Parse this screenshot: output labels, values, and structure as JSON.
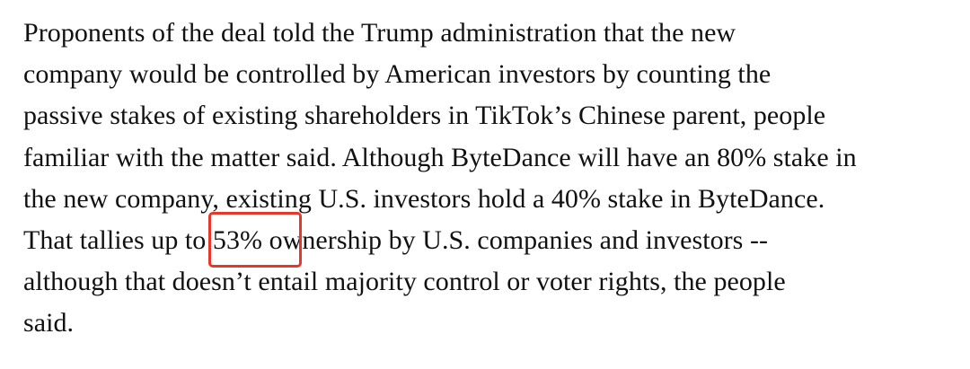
{
  "article": {
    "lines": [
      "Proponents of the deal told the Trump administration that the new",
      "company would be controlled by American investors by counting the",
      "passive stakes of existing shareholders in TikTok’s Chinese parent, people",
      "familiar with the matter said. Although ByteDance will have an 80% stake in",
      "the new company, existing U.S. investors hold a 40% stake in ByteDance.",
      "That tallies up to 53% ownership by U.S. companies and investors --",
      "although that doesn’t entail majority control or voter rights, the people",
      "said."
    ]
  },
  "annotation": {
    "color": "#e8362a"
  }
}
